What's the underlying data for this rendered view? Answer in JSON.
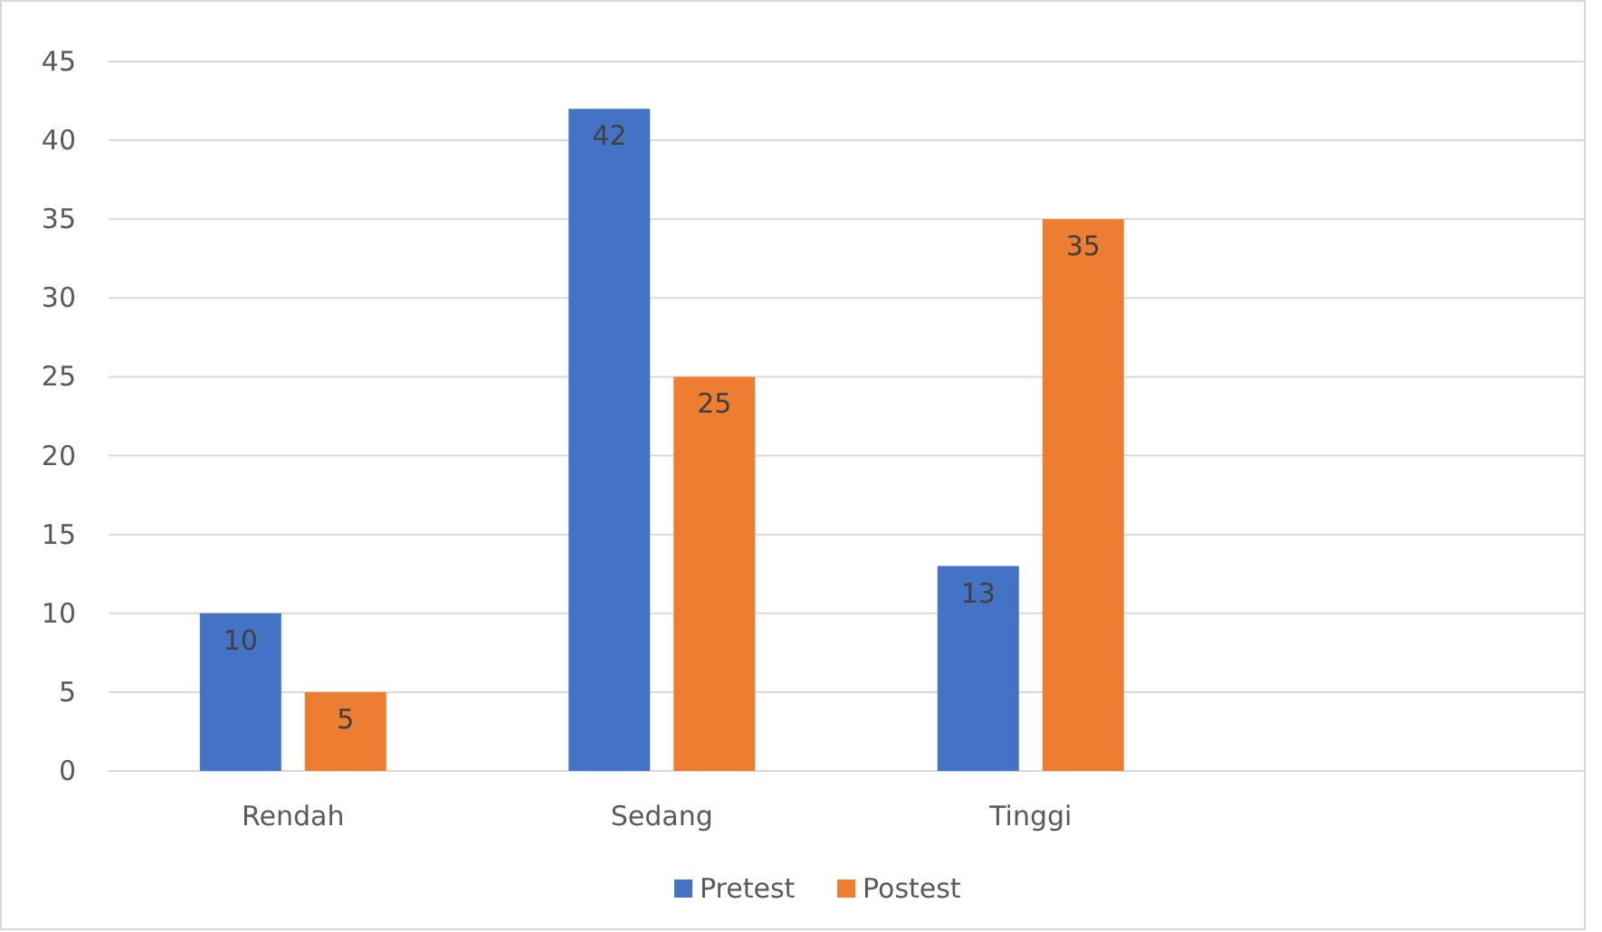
{
  "chart_data": {
    "type": "bar",
    "categories": [
      "Rendah",
      "Sedang",
      "Tinggi",
      null
    ],
    "series": [
      {
        "name": "Pretest",
        "color": "#4472c4",
        "values": [
          10,
          42,
          13,
          null
        ]
      },
      {
        "name": "Postest",
        "color": "#ed7d31",
        "values": [
          5,
          25,
          35,
          null
        ]
      }
    ],
    "ylim": [
      0,
      45
    ],
    "yticks": [
      0,
      5,
      10,
      15,
      20,
      25,
      30,
      35,
      40,
      45
    ],
    "grid": "y",
    "legend": "bottom",
    "data_labels": true
  }
}
